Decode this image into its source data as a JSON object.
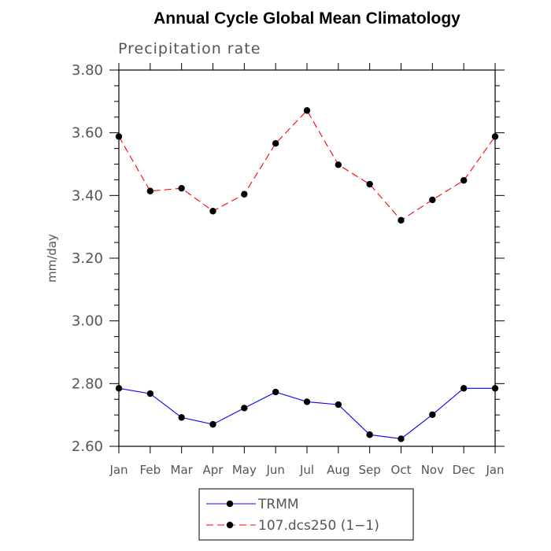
{
  "chart_data": {
    "type": "line",
    "title": "Annual Cycle Global Mean Climatology",
    "subtitle": "Precipitation rate",
    "ylabel": "mm/day",
    "xlabel": "",
    "categories": [
      "Jan",
      "Feb",
      "Mar",
      "Apr",
      "May",
      "Jun",
      "Jul",
      "Aug",
      "Sep",
      "Oct",
      "Nov",
      "Dec",
      "Jan"
    ],
    "ylim": [
      2.6,
      3.8
    ],
    "yticks": [
      "2.60",
      "2.80",
      "3.00",
      "3.20",
      "3.40",
      "3.60",
      "3.80"
    ],
    "grid": false,
    "legend_position": "bottom",
    "series": [
      {
        "name": "TRMM",
        "color": "#0000ff",
        "dash": "solid",
        "values": [
          2.785,
          2.768,
          2.692,
          2.67,
          2.722,
          2.773,
          2.742,
          2.733,
          2.637,
          2.624,
          2.701,
          2.785,
          2.785
        ]
      },
      {
        "name": "107.dcs250 (1−1)",
        "color": "#ff0000",
        "dash": "dashed",
        "values": [
          3.588,
          3.414,
          3.423,
          3.35,
          3.404,
          3.566,
          3.671,
          3.498,
          3.436,
          3.321,
          3.386,
          3.448,
          3.588
        ]
      }
    ]
  }
}
